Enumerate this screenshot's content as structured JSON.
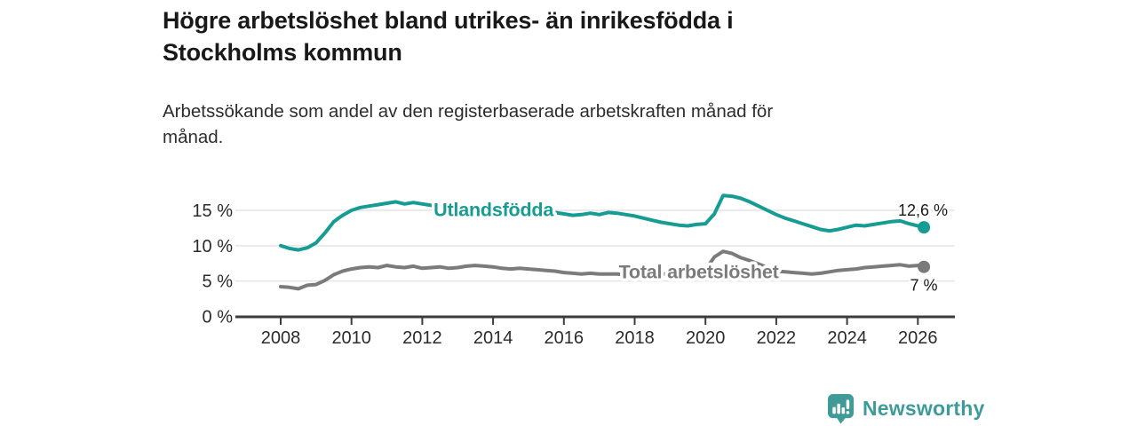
{
  "header": {
    "title": "Högre arbetslöshet bland utrikes- än inrikesfödda i\nStockholms kommun",
    "subtitle": "Arbetssökande som andel av den registerbaserade arbetskraften månad för\nmånad."
  },
  "chart_data": {
    "type": "line",
    "unit": "%",
    "grid": "horizontal",
    "legend": "inline-labels",
    "x_axis": {
      "ticks": [
        2008,
        2010,
        2012,
        2014,
        2016,
        2018,
        2020,
        2022,
        2024,
        2026
      ],
      "range": [
        2008,
        2026.17
      ]
    },
    "y_axis": {
      "ticks": [
        0,
        5,
        10,
        15
      ],
      "tick_labels": [
        "0 %",
        "5 %",
        "10 %",
        "15 %"
      ],
      "range": [
        0,
        18
      ]
    },
    "x": [
      2008,
      2008.25,
      2008.5,
      2008.75,
      2009,
      2009.25,
      2009.5,
      2009.75,
      2010,
      2010.25,
      2010.5,
      2010.75,
      2011,
      2011.25,
      2011.5,
      2011.75,
      2012,
      2012.25,
      2012.5,
      2012.75,
      2013,
      2013.25,
      2013.5,
      2013.75,
      2014,
      2014.25,
      2014.5,
      2014.75,
      2015,
      2015.25,
      2015.5,
      2015.75,
      2016,
      2016.25,
      2016.5,
      2016.75,
      2017,
      2017.25,
      2017.5,
      2017.75,
      2018,
      2018.25,
      2018.5,
      2018.75,
      2019,
      2019.25,
      2019.5,
      2019.75,
      2020,
      2020.25,
      2020.5,
      2020.75,
      2021,
      2021.25,
      2021.5,
      2021.75,
      2022,
      2022.25,
      2022.5,
      2022.75,
      2023,
      2023.25,
      2023.5,
      2023.75,
      2024,
      2024.25,
      2024.5,
      2024.75,
      2025,
      2025.25,
      2025.5,
      2025.75,
      2026,
      2026.17
    ],
    "series": [
      {
        "name": "Utlandsfödda",
        "color": "#169c92",
        "end_label": "12,6 %",
        "end_value": 12.6,
        "inline_label": {
          "x": 2012.32,
          "y": 15.05
        },
        "values": [
          10.0,
          9.6,
          9.4,
          9.7,
          10.4,
          11.8,
          13.4,
          14.3,
          15.0,
          15.4,
          15.6,
          15.8,
          16.0,
          16.2,
          15.9,
          16.1,
          15.9,
          15.7,
          15.6,
          15.5,
          15.4,
          15.3,
          15.3,
          15.2,
          15.1,
          15.0,
          15.0,
          14.9,
          14.9,
          14.8,
          14.8,
          14.7,
          14.5,
          14.3,
          14.4,
          14.6,
          14.4,
          14.7,
          14.6,
          14.4,
          14.2,
          13.9,
          13.6,
          13.3,
          13.1,
          12.9,
          12.8,
          13.0,
          13.1,
          14.5,
          17.1,
          17.0,
          16.7,
          16.2,
          15.6,
          15.0,
          14.4,
          13.9,
          13.5,
          13.1,
          12.7,
          12.3,
          12.1,
          12.3,
          12.6,
          12.9,
          12.8,
          13.0,
          13.2,
          13.4,
          13.5,
          13.1,
          12.8,
          12.6
        ]
      },
      {
        "name": "Total arbetslöshet",
        "color": "#7b7b7b",
        "end_label": "7 %",
        "end_value": 7.0,
        "inline_label": {
          "x": 2017.55,
          "y": 6.3
        },
        "values": [
          4.2,
          4.1,
          3.9,
          4.4,
          4.5,
          5.1,
          5.9,
          6.4,
          6.7,
          6.9,
          7.0,
          6.9,
          7.2,
          7.0,
          6.9,
          7.1,
          6.8,
          6.9,
          7.0,
          6.8,
          6.9,
          7.1,
          7.2,
          7.1,
          7.0,
          6.8,
          6.7,
          6.8,
          6.7,
          6.6,
          6.5,
          6.4,
          6.2,
          6.1,
          6.0,
          6.1,
          6.0,
          6.0,
          6.0,
          5.9,
          5.9,
          5.9,
          6.0,
          6.0,
          6.0,
          6.0,
          6.1,
          6.2,
          6.6,
          8.4,
          9.2,
          8.9,
          8.3,
          7.9,
          7.4,
          6.9,
          6.4,
          6.3,
          6.2,
          6.1,
          6.0,
          6.1,
          6.3,
          6.5,
          6.6,
          6.7,
          6.9,
          7.0,
          7.1,
          7.2,
          7.3,
          7.1,
          7.2,
          7.0
        ]
      }
    ]
  },
  "footer": {
    "brand": "Newsworthy",
    "logo_icon": "newsworthy-speech-bubble-barchart-icon"
  },
  "colors": {
    "accent_teal": "#169c92",
    "series_gray": "#7b7b7b",
    "logo_teal": "#3f9b98",
    "axis_dark": "#3c3c3c",
    "gridline": "#e4e4e4",
    "text_dark": "#1a1a1a"
  }
}
